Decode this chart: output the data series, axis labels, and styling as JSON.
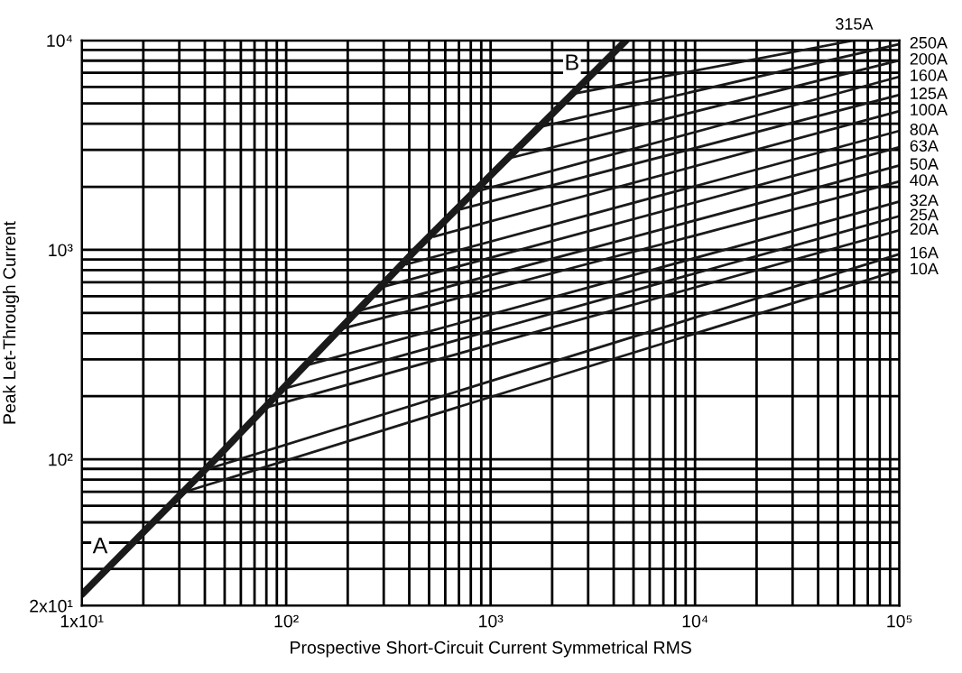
{
  "chart_data": {
    "type": "line",
    "xlabel": "Prospective Short-Circuit Current Symmetrical RMS",
    "ylabel": "Peak Let-Through Current",
    "log": "xy",
    "grid": true,
    "legend": false,
    "xlim": [
      10,
      100000
    ],
    "ylim": [
      20,
      10000
    ],
    "xticks": [
      {
        "value": 10,
        "label": "1x10¹"
      },
      {
        "value": 100,
        "label": "10²"
      },
      {
        "value": 1000,
        "label": "10³"
      },
      {
        "value": 10000,
        "label": "10⁴"
      },
      {
        "value": 100000,
        "label": "10⁵"
      }
    ],
    "yticks": [
      {
        "value": 20,
        "label": "2x10¹"
      },
      {
        "value": 100,
        "label": "10²"
      },
      {
        "value": 1000,
        "label": "10³"
      },
      {
        "value": 10000,
        "label": "10⁴"
      }
    ],
    "annotations": [
      {
        "text": "A",
        "x": 12.3,
        "y": 38
      },
      {
        "text": "B",
        "x": 2500,
        "y": 7700
      }
    ],
    "series": [
      {
        "color": "#1a1a1a",
        "x": [
          10,
          45,
          430,
          4600
        ],
        "values": [
          22.6,
          100,
          1000,
          10000
        ]
      },
      {
        "name": "10A",
        "color": "#1a1a1a",
        "x": [
          30.6,
          100000
        ],
        "values": [
          69,
          800
        ]
      },
      {
        "name": "16A",
        "color": "#1a1a1a",
        "x": [
          40,
          100000
        ],
        "values": [
          89,
          955
        ]
      },
      {
        "name": "20A",
        "color": "#1a1a1a",
        "x": [
          80,
          100000
        ],
        "values": [
          177,
          1240
        ]
      },
      {
        "name": "25A",
        "color": "#1a1a1a",
        "x": [
          97,
          100000
        ],
        "values": [
          217,
          1450
        ]
      },
      {
        "name": "32A",
        "color": "#1a1a1a",
        "x": [
          127,
          100000
        ],
        "values": [
          282,
          1700
        ]
      },
      {
        "name": "40A",
        "color": "#1a1a1a",
        "x": [
          191,
          100000
        ],
        "values": [
          422,
          2120
        ]
      },
      {
        "name": "50A",
        "color": "#1a1a1a",
        "x": [
          234,
          100000
        ],
        "values": [
          516,
          2530
        ]
      },
      {
        "name": "63A",
        "color": "#1a1a1a",
        "x": [
          304,
          100000
        ],
        "values": [
          670,
          3090
        ]
      },
      {
        "name": "80A",
        "color": "#1a1a1a",
        "x": [
          388,
          100000
        ],
        "values": [
          853,
          3700
        ]
      },
      {
        "name": "100A",
        "color": "#1a1a1a",
        "x": [
          527,
          100000
        ],
        "values": [
          1156,
          4600
        ]
      },
      {
        "name": "125A",
        "color": "#1a1a1a",
        "x": [
          715,
          100000
        ],
        "values": [
          1563,
          5500
        ]
      },
      {
        "name": "160A",
        "color": "#1a1a1a",
        "x": [
          877,
          100000
        ],
        "values": [
          1915,
          6710
        ]
      },
      {
        "name": "200A",
        "color": "#1a1a1a",
        "x": [
          1265,
          100000
        ],
        "values": [
          2755,
          8030
        ]
      },
      {
        "name": "250A",
        "color": "#1a1a1a",
        "x": [
          1787,
          100000
        ],
        "values": [
          3880,
          9600
        ]
      },
      {
        "name": "315A",
        "color": "#1a1a1a",
        "x": [
          2580,
          60000
        ],
        "values": [
          5580,
          10000
        ]
      }
    ]
  }
}
